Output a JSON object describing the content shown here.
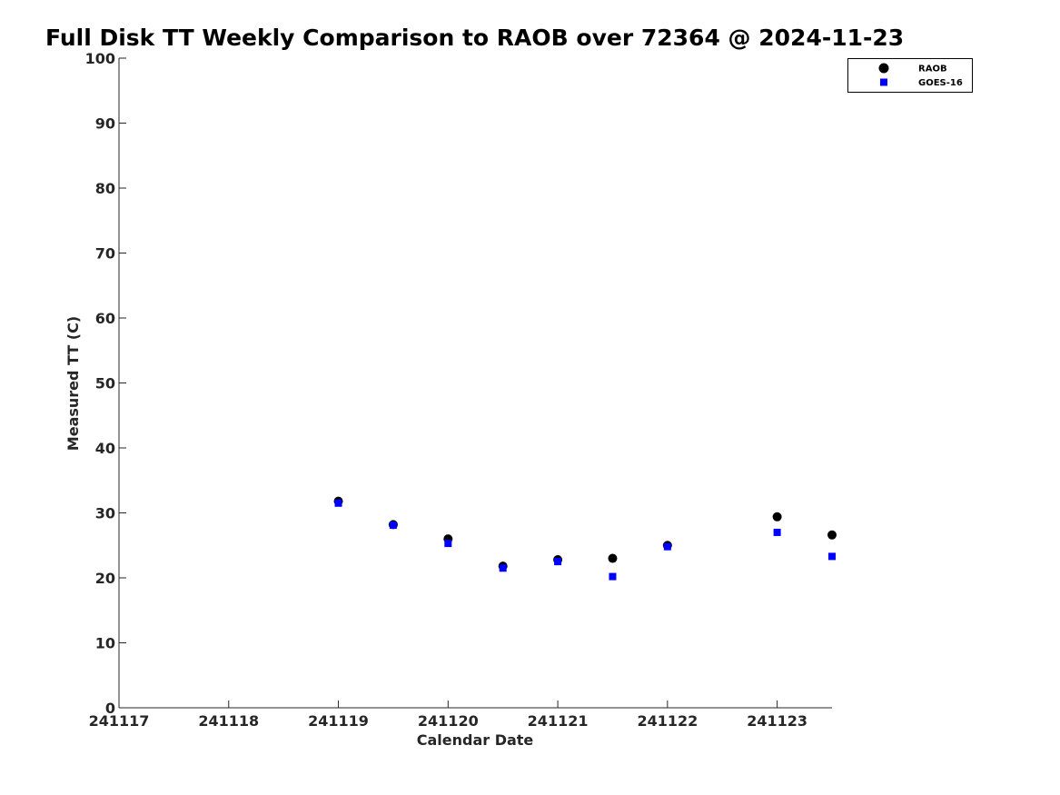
{
  "chart_data": {
    "type": "scatter",
    "title": "Full Disk TT Weekly Comparison to RAOB over 72364 @ 2024-11-23",
    "xlabel": "Calendar Date",
    "ylabel": "Measured TT (C)",
    "xlim": [
      "2024-11-17 00:00",
      "2024-11-23 12:00"
    ],
    "ylim": [
      0,
      100
    ],
    "x_ticks": [
      "241117",
      "241118",
      "241119",
      "241120",
      "241121",
      "241122",
      "241123"
    ],
    "y_ticks": [
      0,
      10,
      20,
      30,
      40,
      50,
      60,
      70,
      80,
      90,
      100
    ],
    "grid": false,
    "legend_position": "top-right",
    "series": [
      {
        "name": "RAOB",
        "marker": "circle",
        "color": "#000000",
        "points": [
          {
            "x": "2024-11-19 00:00",
            "y": 31.8
          },
          {
            "x": "2024-11-19 12:00",
            "y": 28.2
          },
          {
            "x": "2024-11-20 00:00",
            "y": 26.0
          },
          {
            "x": "2024-11-20 12:00",
            "y": 21.8
          },
          {
            "x": "2024-11-21 00:00",
            "y": 22.8
          },
          {
            "x": "2024-11-21 12:00",
            "y": 23.0
          },
          {
            "x": "2024-11-22 00:00",
            "y": 25.0
          },
          {
            "x": "2024-11-23 00:00",
            "y": 29.4
          },
          {
            "x": "2024-11-23 12:00",
            "y": 26.6
          }
        ]
      },
      {
        "name": "GOES-16",
        "marker": "square",
        "color": "#0000ff",
        "points": [
          {
            "x": "2024-11-19 00:00",
            "y": 31.5
          },
          {
            "x": "2024-11-19 12:00",
            "y": 28.1
          },
          {
            "x": "2024-11-20 00:00",
            "y": 25.3
          },
          {
            "x": "2024-11-20 12:00",
            "y": 21.5
          },
          {
            "x": "2024-11-21 00:00",
            "y": 22.5
          },
          {
            "x": "2024-11-21 12:00",
            "y": 20.2
          },
          {
            "x": "2024-11-22 00:00",
            "y": 24.8
          },
          {
            "x": "2024-11-23 00:00",
            "y": 27.0
          },
          {
            "x": "2024-11-23 12:00",
            "y": 23.3
          }
        ]
      }
    ]
  }
}
